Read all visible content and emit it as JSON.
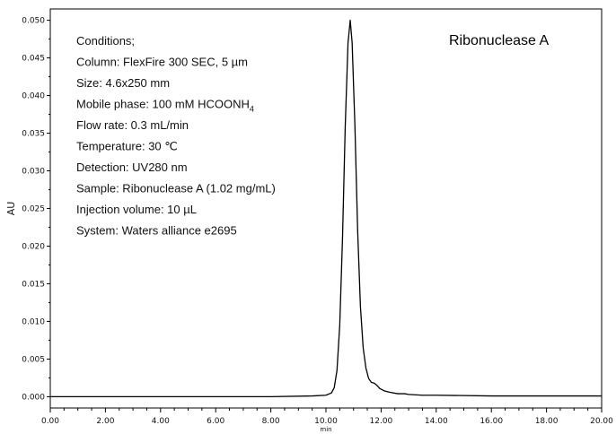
{
  "chart_data": {
    "type": "line",
    "title": "Ribonuclease A",
    "xlabel": "min",
    "ylabel": "AU",
    "xlim": [
      0,
      20
    ],
    "ylim": [
      -0.0015,
      0.0515
    ],
    "x_ticks": [
      "0.00",
      "2.00",
      "4.00",
      "6.00",
      "8.00",
      "10.00",
      "12.00",
      "14.00",
      "16.00",
      "18.00",
      "20.00"
    ],
    "y_ticks": [
      "0.000",
      "0.005",
      "0.010",
      "0.015",
      "0.020",
      "0.025",
      "0.030",
      "0.035",
      "0.040",
      "0.045",
      "0.050"
    ],
    "grid": false,
    "series": [
      {
        "color": "#000000",
        "points": [
          [
            0.0,
            0.0
          ],
          [
            2.0,
            0.0
          ],
          [
            4.0,
            0.0
          ],
          [
            6.0,
            0.0
          ],
          [
            8.0,
            0.0
          ],
          [
            9.5,
            0.0001
          ],
          [
            10.0,
            0.0002
          ],
          [
            10.2,
            0.0005
          ],
          [
            10.3,
            0.0012
          ],
          [
            10.4,
            0.0035
          ],
          [
            10.5,
            0.0095
          ],
          [
            10.6,
            0.021
          ],
          [
            10.7,
            0.036
          ],
          [
            10.8,
            0.047
          ],
          [
            10.88,
            0.05
          ],
          [
            10.95,
            0.047
          ],
          [
            11.05,
            0.036
          ],
          [
            11.15,
            0.022
          ],
          [
            11.25,
            0.012
          ],
          [
            11.35,
            0.0065
          ],
          [
            11.45,
            0.0038
          ],
          [
            11.55,
            0.0024
          ],
          [
            11.65,
            0.0019
          ],
          [
            11.75,
            0.0018
          ],
          [
            11.85,
            0.0015
          ],
          [
            11.95,
            0.0011
          ],
          [
            12.1,
            0.0008
          ],
          [
            12.3,
            0.0006
          ],
          [
            12.6,
            0.0004
          ],
          [
            12.85,
            0.0004
          ],
          [
            13.0,
            0.0003
          ],
          [
            13.5,
            0.0002
          ],
          [
            14.0,
            0.0002
          ],
          [
            16.0,
            0.0001
          ],
          [
            18.0,
            0.0001
          ],
          [
            20.0,
            0.0001
          ]
        ]
      }
    ],
    "annotations": {
      "sample_title": "Ribonuclease A",
      "conditions": [
        "Conditions;",
        "Column: FlexFire 300 SEC, 5 µm",
        "Size: 4.6x250 mm",
        "Mobile phase: 100 mM HCOONH",
        "Flow rate: 0.3 mL/min",
        "Temperature: 30 ℃",
        "Detection: UV280 nm",
        "Sample: Ribonuclease A (1.02 mg/mL)",
        "Injection volume: 10 µL",
        " System: Waters alliance e2695"
      ],
      "mobile_phase_subscript": "4"
    }
  }
}
